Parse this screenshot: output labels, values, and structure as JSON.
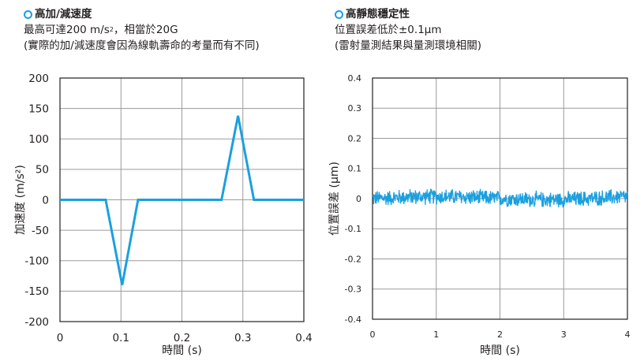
{
  "accent_color": "#1aa0e0",
  "left_panel": {
    "title": "高加/減速度",
    "line1_prefix": "最高可達200 m/s",
    "line1_sup": "2",
    "line1_suffix": "，相當於20G",
    "line2": "(實際的加/減速度會因為線軌壽命的考量而有不同)"
  },
  "right_panel": {
    "title": "高靜態穩定性",
    "line1": "位置誤差低於±0.1μm",
    "line2": "(雷射量測結果與量測環境相關)"
  },
  "chart_data": [
    {
      "type": "line",
      "xlabel": "時間 (s)",
      "ylabel": "加速度 (m/s²)",
      "xlim": [
        0,
        0.4
      ],
      "ylim": [
        -200,
        200
      ],
      "xticks": [
        0,
        0.1,
        0.2,
        0.3,
        0.4
      ],
      "xtick_labels": [
        "0",
        "0.1",
        "0.2",
        "0.3",
        "0.4"
      ],
      "yticks": [
        200,
        150,
        100,
        50,
        0,
        -50,
        -100,
        -150,
        -200
      ],
      "ytick_labels": [
        "200",
        "150",
        "100",
        "50",
        "0",
        "-50",
        "-100",
        "-150",
        "-200"
      ],
      "grid": true,
      "series": [
        {
          "x": [
            0,
            0.075,
            0.102,
            0.128,
            0.265,
            0.292,
            0.318,
            0.4
          ],
          "y": [
            0,
            0,
            -140,
            0,
            0,
            138,
            0,
            0
          ]
        }
      ]
    },
    {
      "type": "line",
      "xlabel": "時間 (s)",
      "ylabel": "位置誤差 (μm)",
      "xlim": [
        0,
        4
      ],
      "ylim": [
        -0.4,
        0.4
      ],
      "xticks": [
        0,
        1,
        2,
        3,
        4
      ],
      "xtick_labels": [
        "0",
        "1",
        "2",
        "3",
        "4"
      ],
      "yticks": [
        0.4,
        0.3,
        0.2,
        0.1,
        0,
        -0.1,
        -0.2,
        -0.3,
        -0.4
      ],
      "ytick_labels": [
        "0.4",
        "0.3",
        "0.2",
        "0.1",
        "0",
        "-0.1",
        "-0.2",
        "-0.3",
        "-0.4"
      ],
      "grid": true,
      "series": [
        {
          "x_range": [
            0,
            4
          ],
          "y_center": 0.0,
          "noise_amplitude": 0.03
        }
      ]
    }
  ]
}
